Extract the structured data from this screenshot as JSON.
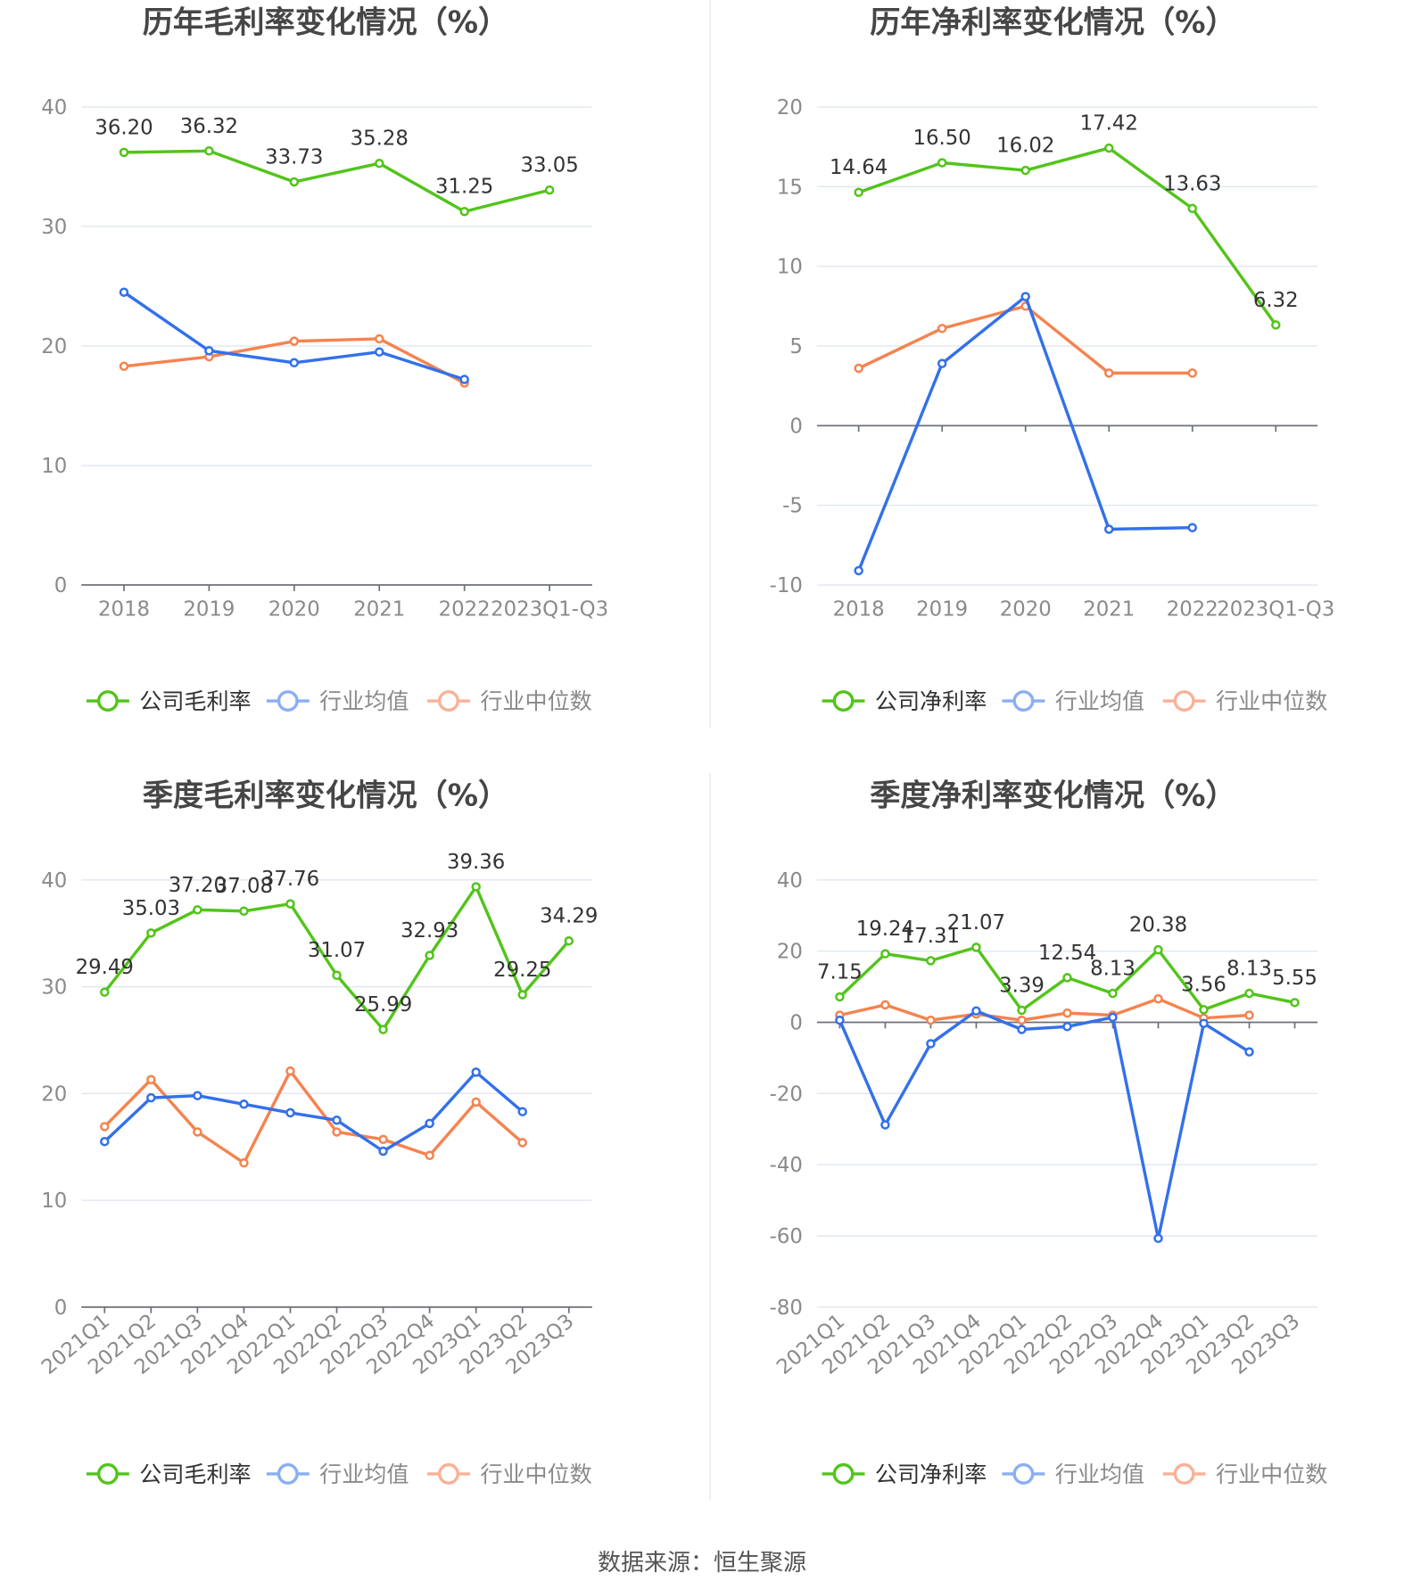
{
  "colors": {
    "company": "#52c41a",
    "avg": "#3370eb",
    "median": "#f5834f",
    "avg_legend": "#8aaef2",
    "median_legend": "#f9b196"
  },
  "footer": {
    "source": "数据来源：恒生聚源"
  },
  "chart_data": [
    {
      "type": "line",
      "title": "历年毛利率变化情况（%）",
      "categories": [
        "2018",
        "2019",
        "2020",
        "2021",
        "2022",
        "2023Q1-Q3"
      ],
      "ylim": [
        0,
        40
      ],
      "ytick_step": 10,
      "grid": true,
      "legend": "bottom",
      "series": [
        {
          "name": "公司毛利率",
          "key": "company",
          "labels": true,
          "values": [
            36.2,
            36.32,
            33.73,
            35.28,
            31.25,
            33.05
          ]
        },
        {
          "name": "行业均值",
          "key": "avg",
          "values": [
            24.5,
            19.6,
            18.6,
            19.5,
            17.2,
            null
          ]
        },
        {
          "name": "行业中位数",
          "key": "median",
          "values": [
            18.3,
            19.1,
            20.4,
            20.6,
            16.9,
            null
          ]
        }
      ]
    },
    {
      "type": "line",
      "title": "历年净利率变化情况（%）",
      "categories": [
        "2018",
        "2019",
        "2020",
        "2021",
        "2022",
        "2023Q1-Q3"
      ],
      "ylim": [
        -10,
        20
      ],
      "ytick_step": 5,
      "grid": true,
      "legend": "bottom",
      "series": [
        {
          "name": "公司净利率",
          "key": "company",
          "labels": true,
          "values": [
            14.64,
            16.5,
            16.02,
            17.42,
            13.63,
            6.32
          ]
        },
        {
          "name": "行业均值",
          "key": "avg",
          "values": [
            -9.1,
            3.9,
            8.1,
            -6.5,
            -6.4,
            null
          ]
        },
        {
          "name": "行业中位数",
          "key": "median",
          "values": [
            3.6,
            6.1,
            7.5,
            3.3,
            3.3,
            null
          ]
        }
      ]
    },
    {
      "type": "line",
      "title": "季度毛利率变化情况（%）",
      "categories": [
        "2021Q1",
        "2021Q2",
        "2021Q3",
        "2021Q4",
        "2022Q1",
        "2022Q2",
        "2022Q3",
        "2022Q4",
        "2023Q1",
        "2023Q2",
        "2023Q3"
      ],
      "ylim": [
        0,
        40
      ],
      "ytick_step": 10,
      "grid": true,
      "legend": "bottom",
      "series": [
        {
          "name": "公司毛利率",
          "key": "company",
          "labels": true,
          "values": [
            29.49,
            35.03,
            37.2,
            37.08,
            37.76,
            31.07,
            25.99,
            32.93,
            39.36,
            29.25,
            34.29
          ]
        },
        {
          "name": "行业均值",
          "key": "avg",
          "values": [
            15.5,
            19.6,
            19.8,
            19.0,
            18.2,
            17.5,
            14.6,
            17.2,
            22.0,
            18.3,
            null
          ]
        },
        {
          "name": "行业中位数",
          "key": "median",
          "values": [
            16.9,
            21.3,
            16.4,
            13.5,
            22.1,
            16.4,
            15.7,
            14.2,
            19.2,
            15.4,
            null
          ]
        }
      ]
    },
    {
      "type": "line",
      "title": "季度净利率变化情况（%）",
      "categories": [
        "2021Q1",
        "2021Q2",
        "2021Q3",
        "2021Q4",
        "2022Q1",
        "2022Q2",
        "2022Q3",
        "2022Q4",
        "2023Q1",
        "2023Q2",
        "2023Q3"
      ],
      "ylim": [
        -80,
        40
      ],
      "ytick_step": 20,
      "grid": true,
      "legend": "bottom",
      "series": [
        {
          "name": "公司净利率",
          "key": "company",
          "labels": true,
          "values": [
            7.15,
            19.24,
            17.31,
            21.07,
            3.39,
            12.54,
            8.13,
            20.38,
            3.56,
            8.13,
            5.55
          ]
        },
        {
          "name": "行业均值",
          "key": "avg",
          "values": [
            0.6,
            -28.8,
            -6.0,
            3.2,
            -2.0,
            -1.2,
            1.4,
            -60.7,
            -0.3,
            -8.3,
            null
          ]
        },
        {
          "name": "行业中位数",
          "key": "median",
          "values": [
            2.0,
            4.9,
            0.6,
            2.3,
            0.6,
            2.6,
            2.0,
            6.6,
            1.2,
            2.0,
            null
          ]
        }
      ]
    }
  ]
}
